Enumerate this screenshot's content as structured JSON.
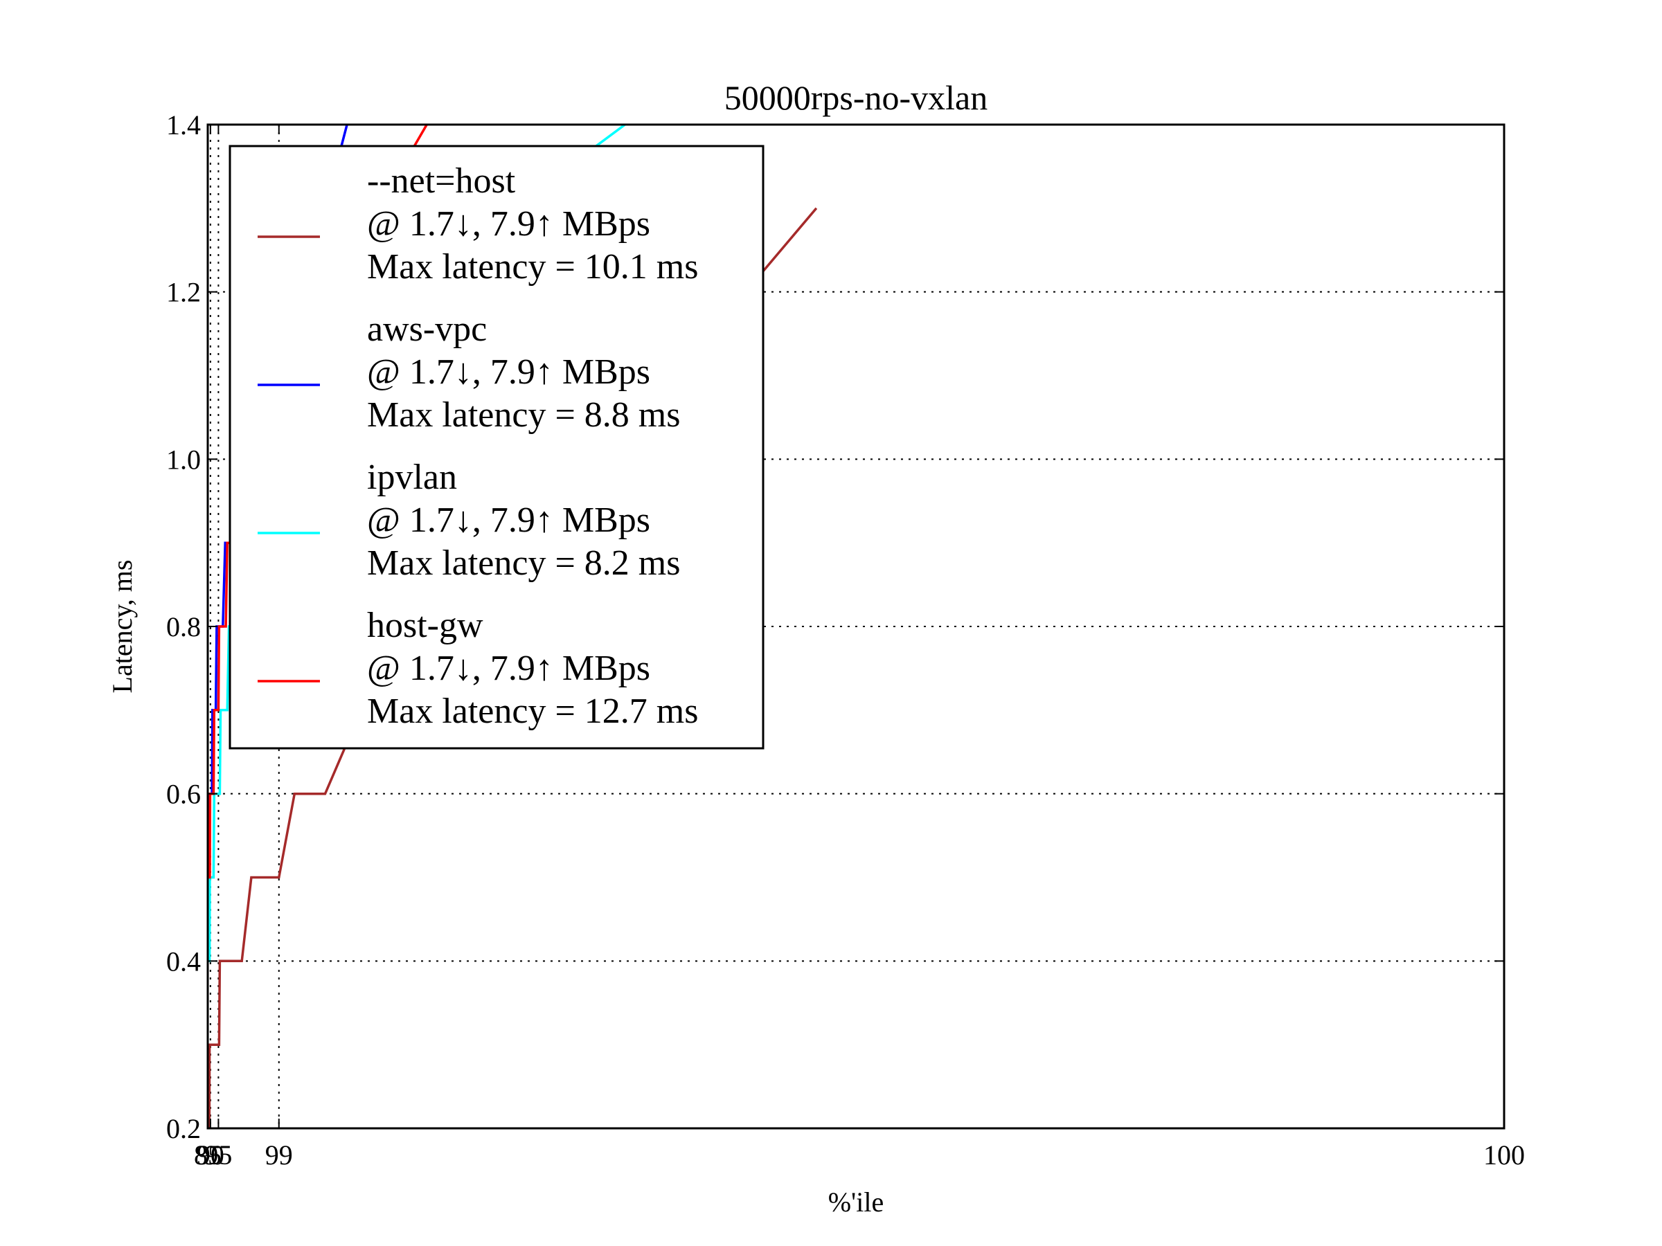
{
  "chart_data": {
    "type": "line",
    "title": "50000rps-no-vxlan",
    "xlabel": "%'ile",
    "ylabel": "Latency, ms",
    "xlim": [
      85,
      100
    ],
    "ylim": [
      0.2,
      1.4
    ],
    "x_scale": "reciprocal-tail",
    "xticks": [
      85,
      90,
      95,
      99,
      100
    ],
    "xtick_labels": [
      "85",
      "90",
      "95",
      "99",
      "100"
    ],
    "yticks": [
      0.2,
      0.4,
      0.6,
      0.8,
      1.0,
      1.2,
      1.4
    ],
    "ytick_labels": [
      "0.2",
      "0.4",
      "0.6",
      "0.8",
      "1.0",
      "1.2",
      "1.4"
    ],
    "grid": true,
    "legend": "top-left",
    "series": [
      {
        "name": "--net=host",
        "legend_lines": [
          "--net=host",
          "@ 1.7↓, 7.9↑ MBps",
          "Max latency = 10.1 ms"
        ],
        "color": "#a52a2a",
        "points": [
          [
            88.4,
            0.2
          ],
          [
            88.8,
            0.3
          ],
          [
            95.2,
            0.3
          ],
          [
            95.4,
            0.4
          ],
          [
            98.0,
            0.4
          ],
          [
            98.4,
            0.5
          ],
          [
            99.0,
            0.5
          ],
          [
            99.18,
            0.6
          ],
          [
            99.4,
            0.6
          ],
          [
            99.55,
            0.7
          ],
          [
            99.75,
            0.8
          ],
          [
            99.93,
            1.3
          ]
        ]
      },
      {
        "name": "aws-vpc",
        "legend_lines": [
          "aws-vpc",
          "@ 1.7↓, 7.9↑ MBps",
          "Max latency = 8.8 ms"
        ],
        "color": "#0000ff",
        "points": [
          [
            85,
            0.5
          ],
          [
            88.1,
            0.5
          ],
          [
            88.5,
            0.6
          ],
          [
            91.6,
            0.6
          ],
          [
            92.0,
            0.7
          ],
          [
            94.0,
            0.7
          ],
          [
            94.4,
            0.8
          ],
          [
            96.1,
            0.8
          ],
          [
            96.5,
            0.9
          ],
          [
            97.3,
            0.9
          ],
          [
            97.6,
            1.0
          ],
          [
            98.2,
            1.0
          ],
          [
            98.4,
            1.1
          ],
          [
            98.6,
            1.1
          ],
          [
            98.8,
            1.2
          ],
          [
            99.15,
            1.2
          ],
          [
            99.4,
            1.3
          ],
          [
            99.5,
            1.4
          ]
        ]
      },
      {
        "name": "ipvlan",
        "legend_lines": [
          "ipvlan",
          "@ 1.7↓, 7.9↑ MBps",
          "Max latency = 8.2 ms"
        ],
        "color": "#00ffff",
        "points": [
          [
            85,
            0.4
          ],
          [
            88.8,
            0.4
          ],
          [
            89.2,
            0.5
          ],
          [
            92.8,
            0.5
          ],
          [
            93.2,
            0.6
          ],
          [
            95.4,
            0.6
          ],
          [
            95.6,
            0.7
          ],
          [
            96.8,
            0.7
          ],
          [
            97.0,
            0.8
          ],
          [
            97.6,
            0.8
          ],
          [
            97.9,
            0.9
          ],
          [
            98.55,
            0.9
          ],
          [
            98.8,
            1.0
          ],
          [
            99.0,
            1.0
          ],
          [
            99.2,
            1.0
          ],
          [
            99.3,
            1.1
          ],
          [
            99.45,
            1.1
          ],
          [
            99.6,
            1.2
          ],
          [
            99.8,
            1.3
          ],
          [
            99.87,
            1.4
          ]
        ]
      },
      {
        "name": "host-gw",
        "legend_lines": [
          "host-gw",
          "@ 1.7↓, 7.9↑ MBps",
          "Max latency = 12.7 ms"
        ],
        "color": "#ff0000",
        "points": [
          [
            85,
            0.5
          ],
          [
            89.2,
            0.5
          ],
          [
            89.6,
            0.6
          ],
          [
            92.8,
            0.6
          ],
          [
            93.2,
            0.7
          ],
          [
            95.0,
            0.7
          ],
          [
            95.2,
            0.8
          ],
          [
            96.6,
            0.8
          ],
          [
            96.8,
            0.9
          ],
          [
            97.7,
            0.9
          ],
          [
            97.9,
            1.0
          ],
          [
            98.3,
            1.0
          ],
          [
            98.5,
            1.1
          ],
          [
            98.98,
            1.1
          ],
          [
            99.2,
            1.2
          ],
          [
            99.4,
            1.3
          ],
          [
            99.6,
            1.3
          ],
          [
            99.7,
            1.4
          ]
        ]
      }
    ]
  }
}
